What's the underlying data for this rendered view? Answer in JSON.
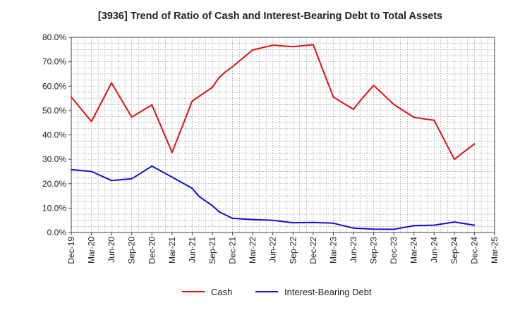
{
  "chart_data": {
    "type": "line",
    "title": "[3936]  Trend of Ratio of Cash and Interest-Bearing Debt to Total Assets",
    "xlabel": "",
    "ylabel": "",
    "ylim": [
      0,
      80
    ],
    "ytick_values": [
      0,
      10,
      20,
      30,
      40,
      50,
      60,
      70,
      80
    ],
    "ytick_labels": [
      "0.0%",
      "10.0%",
      "20.0%",
      "30.0%",
      "40.0%",
      "50.0%",
      "60.0%",
      "70.0%",
      "80.0%"
    ],
    "x_tick_labels": [
      "Dec-19",
      "Mar-20",
      "Jun-20",
      "Sep-20",
      "Dec-20",
      "Mar-21",
      "Jun-21",
      "Sep-21",
      "Dec-21",
      "Mar-22",
      "Jun-22",
      "Sep-22",
      "Dec-22",
      "Mar-23",
      "Jun-23",
      "Sep-23",
      "Dec-23",
      "Mar-24",
      "Jun-24",
      "Sep-24",
      "Dec-24",
      "Mar-25"
    ],
    "x_months_range": [
      0,
      63
    ],
    "grid": true,
    "legend_position": "bottom-center",
    "series": [
      {
        "name": "Cash",
        "color": "#e01010",
        "points": [
          [
            0,
            55.5
          ],
          [
            3,
            45.5
          ],
          [
            6,
            61.3
          ],
          [
            9,
            47.3
          ],
          [
            12,
            52.3
          ],
          [
            15,
            32.8
          ],
          [
            18,
            53.9
          ],
          [
            21,
            59.5
          ],
          [
            22,
            63.5
          ],
          [
            23,
            66.0
          ],
          [
            24,
            68.0
          ],
          [
            27,
            74.8
          ],
          [
            30,
            76.8
          ],
          [
            33,
            76.2
          ],
          [
            36,
            77.0
          ],
          [
            39,
            55.5
          ],
          [
            42,
            50.5
          ],
          [
            43,
            54.0
          ],
          [
            45,
            60.3
          ],
          [
            48,
            52.5
          ],
          [
            51,
            47.2
          ],
          [
            54,
            46.0
          ],
          [
            57,
            30.0
          ],
          [
            60,
            36.3
          ]
        ]
      },
      {
        "name": "Interest-Bearing Debt",
        "color": "#1010d0",
        "points": [
          [
            0,
            25.8
          ],
          [
            3,
            25.0
          ],
          [
            6,
            21.3
          ],
          [
            9,
            22.0
          ],
          [
            12,
            27.2
          ],
          [
            15,
            22.7
          ],
          [
            18,
            18.1
          ],
          [
            19,
            14.8
          ],
          [
            21,
            11.0
          ],
          [
            22,
            8.5
          ],
          [
            24,
            5.8
          ],
          [
            27,
            5.3
          ],
          [
            30,
            5.0
          ],
          [
            33,
            4.0
          ],
          [
            36,
            4.1
          ],
          [
            39,
            3.8
          ],
          [
            42,
            1.8
          ],
          [
            45,
            1.4
          ],
          [
            48,
            1.3
          ],
          [
            51,
            2.8
          ],
          [
            54,
            3.0
          ],
          [
            57,
            4.3
          ],
          [
            60,
            3.0
          ]
        ]
      }
    ]
  }
}
